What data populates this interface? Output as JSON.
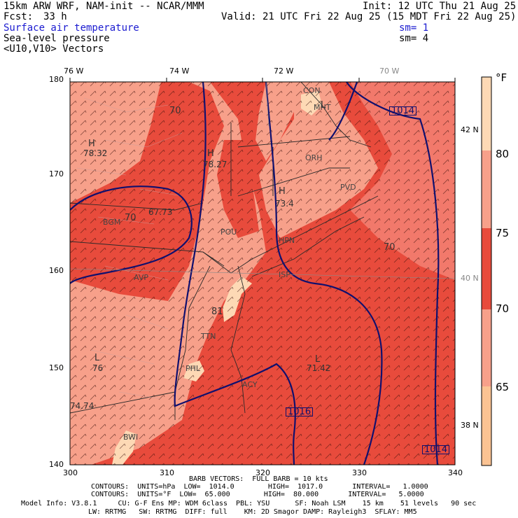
{
  "header": {
    "model": "15km ARW WRF, NAM-init -- NCAR/MMM",
    "init": "Init: 12 UTC Thu 21 Aug 25",
    "fcst_label": "Fcst:",
    "fcst_value": "33 h",
    "valid": "Valid: 21 UTC Fri 22 Aug 25 (15 MDT Fri 22 Aug 25)",
    "field1": "Surface air temperature",
    "field1_sm": "sm= 1",
    "field2": "Sea-level pressure",
    "field2_sm": "sm= 4",
    "field3": "<U10,V10> Vectors"
  },
  "axes": {
    "top_lon": [
      "76 W",
      "74 W",
      "72 W",
      "70 W"
    ],
    "right_lat": [
      "42 N",
      "40 N",
      "38 N"
    ],
    "left_y": [
      "180",
      "170",
      "160",
      "150",
      "140"
    ],
    "bottom_x": [
      "300",
      "310",
      "320",
      "330",
      "340"
    ]
  },
  "colorbar": {
    "unit": "°F",
    "labels": [
      "80",
      "75",
      "70",
      "65"
    ],
    "colors": [
      "#fdd9b5",
      "#f7a08a",
      "#f2796b",
      "#e84b3c",
      "#f7a08a",
      "#fbc393"
    ]
  },
  "map_labels": {
    "highs": [
      "H",
      "H",
      "H"
    ],
    "lows": [
      "L",
      "L",
      "L"
    ],
    "values": [
      "78.32",
      "78.27",
      "73.4",
      "67.73",
      "71.42",
      "74.74",
      "76",
      "81"
    ],
    "contours": [
      "70",
      "70",
      "70",
      "1014",
      "1016",
      "1014"
    ],
    "stations": [
      "CON",
      "MHT",
      "ORH",
      "PVD",
      "BGM",
      "POU",
      "HPN",
      "AVP",
      "PHL",
      "ACY",
      "BWI",
      "TTN",
      "ISP"
    ]
  },
  "footer": {
    "barb": "BARB VECTORS:  FULL BARB = 10 kts",
    "contours_hpa": "CONTOURS:  UNITS=hPa  LOW=  1014.0        HIGH=  1017.0       INTERVAL=   1.0000",
    "contours_f": "CONTOURS:  UNITS=°F  LOW=  65.000        HIGH=  80.000       INTERVAL=   5.0000",
    "model_info": "Model Info: V3.8.1     CU: G-F Ens MP: WDM 6class  PBL: YSU      SF: Noah LSM    15 km    51 levels   90 sec",
    "model_info2": "LW: RRTMG   SW: RRTMG  DIFF: full    KM: 2D Smagor DAMP: Rayleigh3  SFLAY: MM5"
  },
  "colors": {
    "background": "#ffffff",
    "contour_blue": "#10106e",
    "warm_red": "#e84b3c",
    "light_salmon": "#f7a08a",
    "peach": "#fdd9b5"
  }
}
